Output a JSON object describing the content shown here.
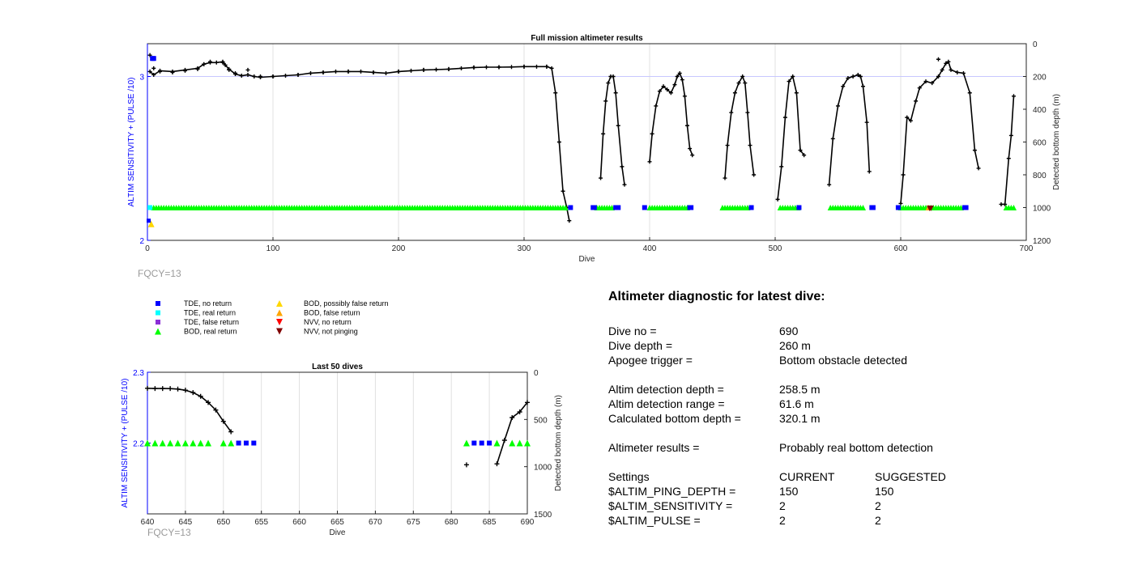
{
  "colors": {
    "left_axis": "#0000ff",
    "trace": "#000000",
    "tde_no_return": "#0000ff",
    "tde_real_return": "#00ffff",
    "tde_false_return": "#8b2fd6",
    "bod_real_return": "#00ff00",
    "bod_possibly_false": "#ffd700",
    "bod_false_return": "#ffa500",
    "nvv_no_return": "#ff0000",
    "nvv_not_pinging": "#800000",
    "ref_line": "#c8c8ff",
    "grid": "#e0e0e0"
  },
  "legend": [
    {
      "marker": "square",
      "color_key": "tde_no_return",
      "label": "TDE, no return"
    },
    {
      "marker": "square",
      "color_key": "tde_real_return",
      "label": "TDE, real return"
    },
    {
      "marker": "square",
      "color_key": "tde_false_return",
      "label": "TDE, false return"
    },
    {
      "marker": "triangle-up",
      "color_key": "bod_real_return",
      "label": "BOD, real return"
    },
    {
      "marker": "triangle-up",
      "color_key": "bod_possibly_false",
      "label": "BOD, possibly false return"
    },
    {
      "marker": "triangle-up",
      "color_key": "bod_false_return",
      "label": "BOD, false return"
    },
    {
      "marker": "triangle-down",
      "color_key": "nvv_no_return",
      "label": "NVV, no return"
    },
    {
      "marker": "triangle-down",
      "color_key": "nvv_not_pinging",
      "label": "NVV, not pinging"
    }
  ],
  "chart_data": [
    {
      "type": "line",
      "title": "Full mission altimeter results",
      "xlabel": "Dive",
      "ylabel_left": "ALTIM SENSITIVITY + (PULSE /10)",
      "ylabel_right": "Detected bottom depth (m)",
      "xlim": [
        0,
        700
      ],
      "xticks": [
        0,
        100,
        200,
        300,
        400,
        500,
        600,
        700
      ],
      "ylim_left": [
        2,
        3.2
      ],
      "yticks_left": [
        2,
        3
      ],
      "ylim_right": [
        0,
        1200
      ],
      "yticks_right": [
        0,
        200,
        400,
        600,
        800,
        1000,
        1200
      ],
      "right_axis_reversed": true,
      "reference_depth": 200,
      "footnote": "FQCY=13",
      "depth_segments": [
        [
          [
            2,
            170
          ],
          [
            5,
            190
          ],
          [
            10,
            165
          ],
          [
            20,
            170
          ],
          [
            30,
            160
          ],
          [
            40,
            150
          ],
          [
            45,
            125
          ],
          [
            50,
            115
          ],
          [
            55,
            115
          ],
          [
            60,
            110
          ],
          [
            62,
            130
          ],
          [
            65,
            155
          ],
          [
            70,
            185
          ],
          [
            75,
            195
          ],
          [
            80,
            190
          ],
          [
            85,
            200
          ],
          [
            90,
            205
          ],
          [
            100,
            200
          ],
          [
            110,
            195
          ],
          [
            120,
            190
          ],
          [
            130,
            180
          ],
          [
            140,
            175
          ],
          [
            150,
            170
          ],
          [
            160,
            170
          ],
          [
            170,
            170
          ],
          [
            180,
            175
          ],
          [
            190,
            180
          ],
          [
            200,
            170
          ],
          [
            210,
            165
          ],
          [
            220,
            160
          ],
          [
            230,
            158
          ],
          [
            240,
            155
          ],
          [
            250,
            150
          ],
          [
            260,
            145
          ],
          [
            270,
            143
          ],
          [
            280,
            143
          ],
          [
            290,
            142
          ],
          [
            300,
            140
          ],
          [
            310,
            140
          ],
          [
            318,
            140
          ],
          [
            322,
            150
          ],
          [
            325,
            300
          ],
          [
            328,
            600
          ],
          [
            331,
            900
          ],
          [
            334,
            1000
          ],
          [
            336,
            1080
          ]
        ],
        [
          [
            361,
            820
          ],
          [
            363,
            550
          ],
          [
            365,
            350
          ],
          [
            367,
            240
          ],
          [
            369,
            200
          ],
          [
            371,
            200
          ],
          [
            373,
            300
          ],
          [
            375,
            500
          ],
          [
            378,
            750
          ],
          [
            380,
            860
          ]
        ],
        [
          [
            400,
            720
          ],
          [
            402,
            550
          ],
          [
            405,
            380
          ],
          [
            408,
            290
          ],
          [
            411,
            260
          ],
          [
            414,
            280
          ],
          [
            417,
            300
          ],
          [
            420,
            250
          ],
          [
            422,
            200
          ],
          [
            424,
            180
          ],
          [
            426,
            220
          ],
          [
            428,
            320
          ],
          [
            430,
            500
          ],
          [
            432,
            640
          ],
          [
            434,
            680
          ]
        ],
        [
          [
            460,
            820
          ],
          [
            462,
            620
          ],
          [
            465,
            420
          ],
          [
            468,
            300
          ],
          [
            471,
            240
          ],
          [
            474,
            200
          ],
          [
            476,
            240
          ],
          [
            478,
            420
          ],
          [
            480,
            620
          ],
          [
            483,
            800
          ]
        ],
        [
          [
            502,
            950
          ],
          [
            505,
            750
          ],
          [
            508,
            450
          ],
          [
            511,
            230
          ],
          [
            514,
            200
          ],
          [
            517,
            300
          ],
          [
            520,
            650
          ],
          [
            523,
            680
          ]
        ],
        [
          [
            543,
            860
          ],
          [
            546,
            580
          ],
          [
            550,
            380
          ],
          [
            554,
            260
          ],
          [
            558,
            210
          ],
          [
            562,
            200
          ],
          [
            566,
            190
          ],
          [
            568,
            200
          ],
          [
            570,
            260
          ],
          [
            573,
            480
          ],
          [
            575,
            780
          ]
        ],
        [
          [
            600,
            975
          ],
          [
            602,
            800
          ],
          [
            605,
            450
          ],
          [
            608,
            470
          ],
          [
            612,
            350
          ],
          [
            615,
            270
          ],
          [
            620,
            230
          ],
          [
            625,
            240
          ],
          [
            630,
            200
          ],
          [
            633,
            160
          ],
          [
            636,
            120
          ],
          [
            638,
            110
          ],
          [
            640,
            160
          ],
          [
            645,
            175
          ],
          [
            650,
            180
          ],
          [
            655,
            300
          ],
          [
            659,
            650
          ],
          [
            662,
            760
          ]
        ],
        [
          [
            680,
            980
          ],
          [
            683,
            980
          ],
          [
            686,
            700
          ],
          [
            688,
            560
          ],
          [
            690,
            320
          ]
        ]
      ],
      "depth_markers": [
        [
          2,
          70
        ],
        [
          5,
          150
        ],
        [
          10,
          170
        ],
        [
          20,
          175
        ],
        [
          30,
          165
        ],
        [
          40,
          155
        ],
        [
          45,
          125
        ],
        [
          50,
          110
        ],
        [
          60,
          115
        ],
        [
          65,
          160
        ],
        [
          70,
          180
        ],
        [
          80,
          160
        ],
        [
          90,
          200
        ],
        [
          100,
          200
        ],
        [
          120,
          190
        ],
        [
          140,
          175
        ],
        [
          160,
          170
        ],
        [
          180,
          175
        ],
        [
          200,
          170
        ],
        [
          220,
          160
        ],
        [
          240,
          155
        ],
        [
          260,
          145
        ],
        [
          280,
          143
        ],
        [
          300,
          140
        ],
        [
          318,
          140
        ],
        [
          630,
          95
        ]
      ],
      "tde_no_return_dives": [
        4,
        5,
        337,
        355,
        356,
        373,
        374,
        375,
        396,
        432,
        433,
        481,
        519,
        577,
        578,
        598,
        651,
        652
      ],
      "tde_real_return_dives": [
        2
      ],
      "bod_real_return_ranges": [
        [
          5,
          333
        ],
        [
          358,
          371
        ],
        [
          400,
          430
        ],
        [
          458,
          478
        ],
        [
          504,
          518
        ],
        [
          544,
          570
        ],
        [
          600,
          648
        ],
        [
          684,
          690
        ]
      ],
      "bod_possibly_false_dives": [
        3
      ],
      "bod_false_return_dives": [
        622
      ],
      "nvv_not_pinging_dives": [
        623,
        624
      ],
      "level_left_tde": 2.12,
      "level_left_bod": 2.2,
      "level_left_tde_top": 3.11
    },
    {
      "type": "line",
      "title": "Last 50 dives",
      "xlabel": "Dive",
      "ylabel_left": "ALTIM SENSITIVITY + (PULSE /10)",
      "ylabel_right": "Detected bottom depth (m)",
      "xlim": [
        640,
        690
      ],
      "xticks": [
        640,
        645,
        650,
        655,
        660,
        665,
        670,
        675,
        680,
        685,
        690
      ],
      "ylim_left": [
        2.1,
        2.3
      ],
      "yticks_left": [
        2.2,
        2.3
      ],
      "ylim_right": [
        0,
        1500
      ],
      "yticks_right": [
        0,
        500,
        1000,
        1500
      ],
      "right_axis_reversed": true,
      "footnote": "FQCY=13",
      "depth_segments": [
        [
          [
            640,
            170
          ],
          [
            641,
            172
          ],
          [
            642,
            172
          ],
          [
            643,
            173
          ],
          [
            644,
            178
          ],
          [
            645,
            190
          ],
          [
            646,
            215
          ],
          [
            647,
            255
          ],
          [
            648,
            320
          ],
          [
            649,
            400
          ],
          [
            650,
            520
          ],
          [
            651,
            630
          ]
        ],
        [
          [
            686,
            970
          ],
          [
            687,
            720
          ],
          [
            688,
            480
          ],
          [
            689,
            420
          ],
          [
            690,
            320
          ]
        ]
      ],
      "depth_markers": [
        [
          682,
          980
        ]
      ],
      "bod_real_return_dives": [
        640,
        641,
        642,
        643,
        644,
        645,
        646,
        647,
        648,
        650,
        651,
        682,
        686,
        688,
        689,
        690
      ],
      "tde_no_return_dives": [
        652,
        653,
        654,
        683,
        684,
        685
      ],
      "level_left": 2.2
    }
  ],
  "diagnostic": {
    "title": "Altimeter diagnostic for latest dive:",
    "dive_no": {
      "label": "Dive no =",
      "value": "690"
    },
    "dive_depth": {
      "label": "Dive depth =",
      "value": "260 m"
    },
    "apogee_trigger": {
      "label": "Apogee trigger =",
      "value": "Bottom obstacle detected"
    },
    "altim_detection_depth": {
      "label": "Altim detection depth =",
      "value": "258.5 m"
    },
    "altim_detection_range": {
      "label": "Altim detection range =",
      "value": "61.6 m"
    },
    "calculated_bottom_depth": {
      "label": "Calculated bottom depth =",
      "value": "320.1 m"
    },
    "altimeter_results": {
      "label": "Altimeter results =",
      "value": "Probably real bottom detection"
    },
    "settings": {
      "label": "Settings",
      "current_header": "CURRENT",
      "suggested_header": "SUGGESTED",
      "rows": [
        {
          "name": "$ALTIM_PING_DEPTH =",
          "current": "150",
          "suggested": "150"
        },
        {
          "name": "$ALTIM_SENSITIVITY =",
          "current": "2",
          "suggested": "2"
        },
        {
          "name": "$ALTIM_PULSE =",
          "current": "2",
          "suggested": "2"
        }
      ]
    }
  }
}
